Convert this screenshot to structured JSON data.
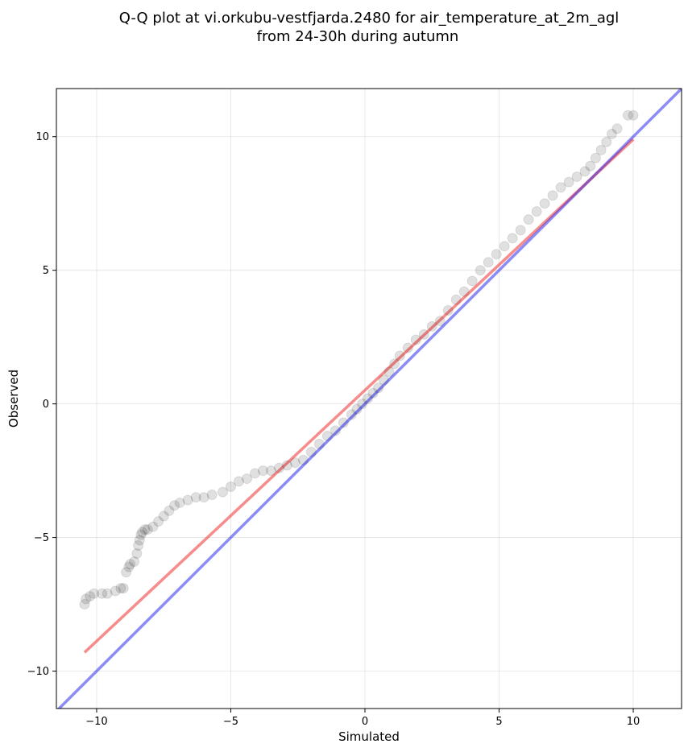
{
  "chart_data": {
    "type": "scatter",
    "title": [
      "Q-Q plot at vi.orkubu-vestfjarda.2480 for air_temperature_at_2m_agl",
      "from 24-30h during autumn"
    ],
    "xlabel": "Simulated",
    "ylabel": "Observed",
    "xlim": [
      -11.5,
      11.8
    ],
    "ylim": [
      -11.4,
      11.8
    ],
    "xticks": [
      -10,
      -5,
      0,
      5,
      10
    ],
    "yticks": [
      -10,
      -5,
      0,
      5,
      10
    ],
    "xtick_labels": [
      "−10",
      "−5",
      "0",
      "5",
      "10"
    ],
    "ytick_labels": [
      "−10",
      "−5",
      "0",
      "5",
      "10"
    ],
    "grid": true,
    "series": [
      {
        "kind": "points",
        "color": "#000000",
        "x": [
          -10.45,
          -10.4,
          -10.25,
          -10.1,
          -9.8,
          -9.6,
          -9.3,
          -9.1,
          -9.0,
          -8.9,
          -8.8,
          -8.75,
          -8.6,
          -8.5,
          -8.45,
          -8.4,
          -8.35,
          -8.3,
          -8.2,
          -8.1,
          -7.9,
          -7.7,
          -7.5,
          -7.3,
          -7.1,
          -6.9,
          -6.6,
          -6.3,
          -6.0,
          -5.7,
          -5.3,
          -5.0,
          -4.7,
          -4.4,
          -4.1,
          -3.8,
          -3.5,
          -3.2,
          -2.9,
          -2.6,
          -2.3,
          -2.0,
          -1.7,
          -1.4,
          -1.1,
          -0.8,
          -0.5,
          -0.3,
          -0.1,
          0.1,
          0.3,
          0.5,
          0.7,
          0.9,
          1.1,
          1.3,
          1.6,
          1.9,
          2.2,
          2.5,
          2.8,
          3.1,
          3.4,
          3.7,
          4.0,
          4.3,
          4.6,
          4.9,
          5.2,
          5.5,
          5.8,
          6.1,
          6.4,
          6.7,
          7.0,
          7.3,
          7.6,
          7.9,
          8.2,
          8.4,
          8.6,
          8.8,
          9.0,
          9.2,
          9.4,
          9.8,
          10.0
        ],
        "y": [
          -7.5,
          -7.3,
          -7.2,
          -7.1,
          -7.1,
          -7.1,
          -7.0,
          -6.9,
          -6.9,
          -6.3,
          -6.1,
          -6.0,
          -5.9,
          -5.6,
          -5.3,
          -5.1,
          -4.9,
          -4.8,
          -4.7,
          -4.7,
          -4.6,
          -4.4,
          -4.2,
          -4.0,
          -3.8,
          -3.7,
          -3.6,
          -3.5,
          -3.5,
          -3.4,
          -3.3,
          -3.1,
          -2.9,
          -2.8,
          -2.6,
          -2.5,
          -2.5,
          -2.4,
          -2.3,
          -2.2,
          -2.1,
          -1.8,
          -1.5,
          -1.2,
          -1.0,
          -0.7,
          -0.4,
          -0.2,
          0.0,
          0.2,
          0.4,
          0.6,
          0.9,
          1.2,
          1.5,
          1.8,
          2.1,
          2.4,
          2.6,
          2.9,
          3.1,
          3.5,
          3.9,
          4.2,
          4.6,
          5.0,
          5.3,
          5.6,
          5.9,
          6.2,
          6.5,
          6.9,
          7.2,
          7.5,
          7.8,
          8.1,
          8.3,
          8.5,
          8.7,
          8.9,
          9.2,
          9.5,
          9.8,
          10.1,
          10.3,
          10.8,
          10.8
        ]
      },
      {
        "kind": "line",
        "color": "#ee2222",
        "x": [
          -10.45,
          10.0
        ],
        "y": [
          -9.3,
          9.9
        ]
      },
      {
        "kind": "line",
        "color": "#2222ee",
        "x": [
          -11.5,
          11.8
        ],
        "y": [
          -11.5,
          11.8
        ]
      }
    ]
  }
}
